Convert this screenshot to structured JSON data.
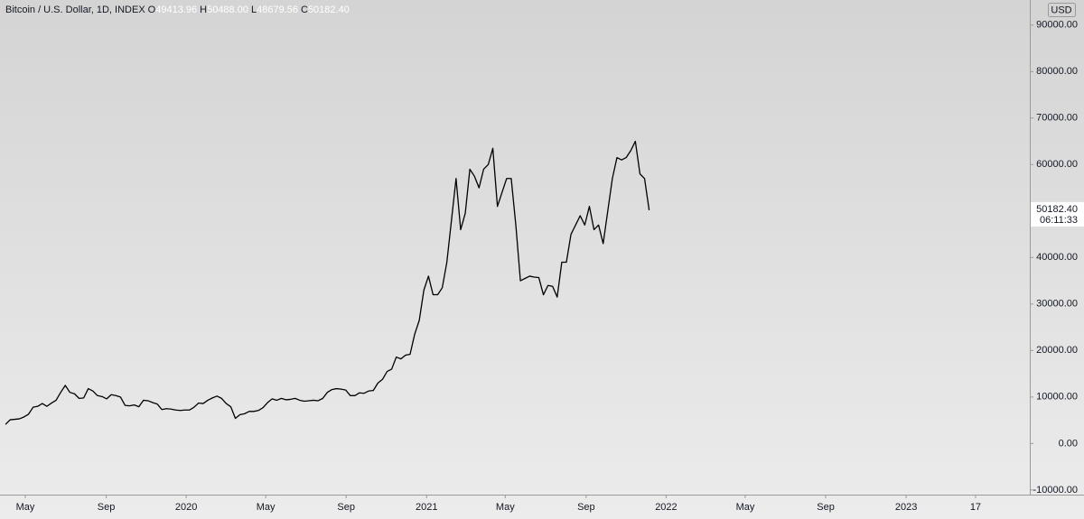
{
  "chart_data": {
    "type": "line",
    "title": "Bitcoin / U.S. Dollar, 1D, INDEX",
    "ohlc": [
      [
        "O",
        "49413.96"
      ],
      [
        "H",
        "50488.00"
      ],
      [
        "L",
        "48679.56"
      ],
      [
        "C",
        "50182.40"
      ]
    ],
    "y_unit": "USD",
    "last_price_label": "50182.40",
    "countdown": "06:11:33",
    "color": "#000000",
    "grid": false,
    "values": [
      4100,
      5100,
      5200,
      5300,
      5700,
      6300,
      7800,
      8000,
      8600,
      8000,
      8700,
      9300,
      11000,
      12500,
      11000,
      10700,
      9700,
      9800,
      11800,
      11300,
      10300,
      10100,
      9600,
      10500,
      10300,
      10000,
      8200,
      8100,
      8300,
      7900,
      9300,
      9200,
      8800,
      8500,
      7300,
      7500,
      7400,
      7200,
      7100,
      7200,
      7200,
      7800,
      8700,
      8600,
      9300,
      9800,
      10200,
      9700,
      8600,
      7900,
      5400,
      6200,
      6400,
      6900,
      6900,
      7100,
      7700,
      8800,
      9600,
      9300,
      9700,
      9400,
      9500,
      9700,
      9300,
      9100,
      9200,
      9300,
      9200,
      9700,
      11000,
      11600,
      11800,
      11700,
      11500,
      10300,
      10300,
      10900,
      10800,
      11300,
      11400,
      13000,
      13800,
      15500,
      16000,
      18600,
      18200,
      19000,
      19200,
      23500,
      26500,
      33000,
      36000,
      32000,
      32000,
      33500,
      39000,
      48000,
      57000,
      46000,
      49500,
      59000,
      57500,
      55000,
      59000,
      60000,
      63500,
      51000,
      54000,
      57000,
      57000,
      47000,
      35000,
      35500,
      36000,
      35800,
      35700,
      32000,
      34000,
      33800,
      31500,
      39000,
      39000,
      45000,
      47000,
      49000,
      47000,
      51000,
      46000,
      47000,
      43000,
      50000,
      57000,
      61500,
      61000,
      61500,
      63000,
      65000,
      58000,
      57000,
      50182.4
    ],
    "xlim": [
      -1.2,
      222.8
    ],
    "xticks": [
      {
        "value": 4.3,
        "label": "May"
      },
      {
        "value": 21.9,
        "label": "Sep"
      },
      {
        "value": 39.3,
        "label": "2020"
      },
      {
        "value": 56.6,
        "label": "May"
      },
      {
        "value": 74.1,
        "label": "Sep"
      },
      {
        "value": 91.6,
        "label": "2021"
      },
      {
        "value": 108.7,
        "label": "May"
      },
      {
        "value": 126.3,
        "label": "Sep"
      },
      {
        "value": 143.7,
        "label": "2022"
      },
      {
        "value": 160.9,
        "label": "May"
      },
      {
        "value": 178.4,
        "label": "Sep"
      },
      {
        "value": 195.9,
        "label": "2023"
      },
      {
        "value": 211,
        "label": "17"
      }
    ],
    "ylim": [
      -11000,
      95400
    ],
    "yticks": [
      {
        "value": 90000,
        "label": "90000.00"
      },
      {
        "value": 80000,
        "label": "80000.00"
      },
      {
        "value": 70000,
        "label": "70000.00"
      },
      {
        "value": 60000,
        "label": "60000.00"
      },
      {
        "value": 50000,
        "label": "50000.00"
      },
      {
        "value": 40000,
        "label": "40000.00"
      },
      {
        "value": 30000,
        "label": "30000.00"
      },
      {
        "value": 20000,
        "label": "20000.00"
      },
      {
        "value": 10000,
        "label": "10000.00"
      },
      {
        "value": 0,
        "label": "0.00"
      },
      {
        "value": -10000,
        "label": "-10000.00"
      }
    ]
  }
}
